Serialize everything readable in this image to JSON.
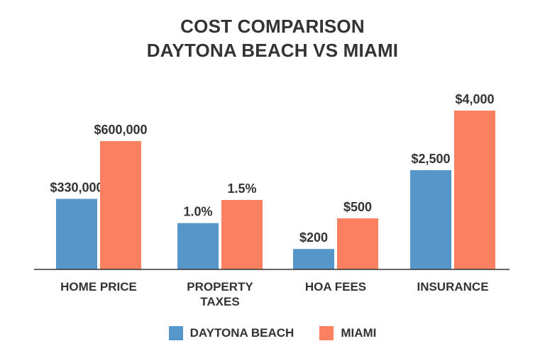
{
  "title_line1": "COST COMPARISON",
  "title_line2": "DAYTONA BEACH VS MIAMI",
  "colors": {
    "daytona": "#5796c8",
    "miami": "#fb7f61",
    "axis": "#333333",
    "text": "#333333"
  },
  "chart_data": {
    "type": "bar",
    "title": "COST COMPARISON DAYTONA BEACH VS MIAMI",
    "categories": [
      [
        "HOME PRICE"
      ],
      [
        "PROPERTY",
        "TAXES"
      ],
      [
        "HOA FEES"
      ],
      [
        "INSURANCE"
      ]
    ],
    "series": [
      {
        "name": "DAYTONA BEACH",
        "values": [
          330000,
          1.0,
          200,
          2500
        ],
        "labels": [
          "$330,000",
          "1.0%",
          "$200",
          "$2,500"
        ]
      },
      {
        "name": "MIAMI",
        "values": [
          600000,
          1.5,
          500,
          4000
        ],
        "labels": [
          "$600,000",
          "1.5%",
          "$500",
          "$4,000"
        ]
      }
    ],
    "legend_position": "bottom",
    "grid": false
  }
}
